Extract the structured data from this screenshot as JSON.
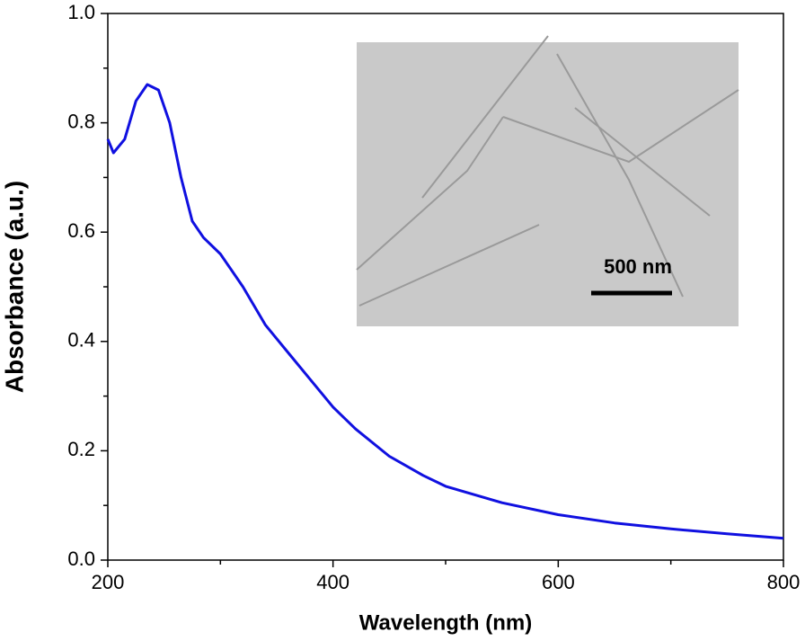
{
  "chart_data": {
    "type": "line",
    "x_label": "Wavelength (nm)",
    "y_label": "Absorbance (a.u.)",
    "inset_label": "500 nm",
    "xlim": [
      200,
      800
    ],
    "ylim": [
      0,
      1
    ],
    "xticks": [
      200,
      400,
      600,
      800
    ],
    "xminorticks": [
      300,
      500,
      700
    ],
    "yticks": [
      {
        "value": 0,
        "label": "0.0"
      },
      0.2,
      0.4,
      0.6,
      0.8,
      {
        "value": 1,
        "label": "1.0"
      }
    ],
    "yminorticks": [
      0.1,
      0.3,
      0.5,
      0.7,
      0.9
    ],
    "series": [
      {
        "color": "#1010e0",
        "x": [
          200,
          205,
          215,
          225,
          235,
          245,
          255,
          265,
          275,
          285,
          300,
          320,
          340,
          360,
          380,
          400,
          420,
          450,
          480,
          500,
          550,
          600,
          650,
          700,
          750,
          800
        ],
        "values": [
          0.77,
          0.745,
          0.77,
          0.84,
          0.87,
          0.86,
          0.8,
          0.7,
          0.62,
          0.59,
          0.56,
          0.5,
          0.43,
          0.38,
          0.33,
          0.28,
          0.24,
          0.19,
          0.155,
          0.135,
          0.105,
          0.083,
          0.068,
          0.057,
          0.048,
          0.04
        ]
      }
    ]
  }
}
